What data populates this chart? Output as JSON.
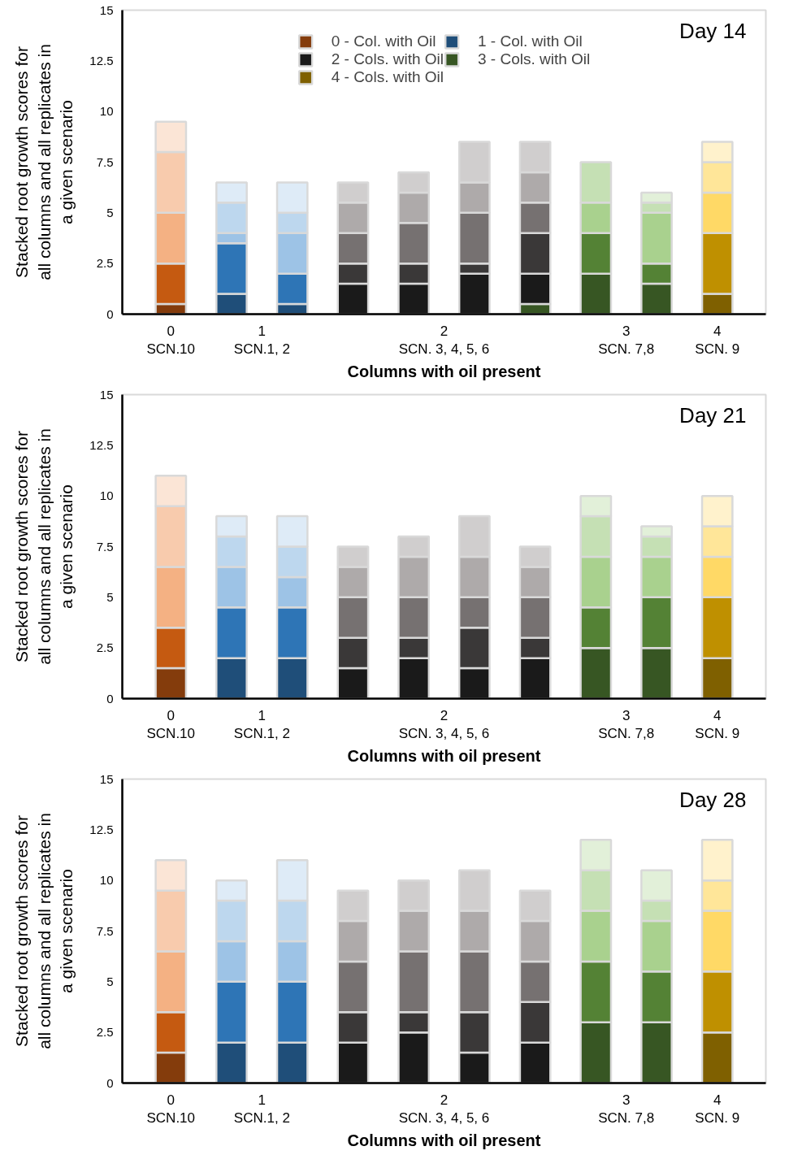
{
  "chart_data": [
    {
      "type": "bar",
      "title": "Day 14",
      "xlabel": "Columns with oil present",
      "ylabel": "Stacked root growth scores for all columns and all replicates in a given scenario",
      "stacked": true,
      "categories": [
        null,
        null,
        null,
        null,
        null,
        null,
        null,
        null,
        null,
        null
      ],
      "annotations": [
        "0\nSCN.10",
        "1\nSCN.1, 2",
        "2\nSCN. 3, 4, 5, 6",
        "3\nSCN. 7,8",
        "4\nSCN. 9"
      ],
      "ylim": [
        0,
        15
      ],
      "yticks": [
        0,
        2.5,
        5,
        7.5,
        10,
        12.5,
        15
      ],
      "grid": false,
      "legend": "top",
      "series": [
        {
          "colors": [
            null,
            null,
            null,
            null,
            null,
            null,
            "#375623",
            null,
            null,
            null
          ],
          "values": [
            null,
            null,
            null,
            null,
            null,
            null,
            0.5,
            null,
            null,
            null
          ]
        },
        {
          "name": "0 - Col. with Oil",
          "color": "#843c0c",
          "values": [
            0.5,
            null,
            null,
            null,
            null,
            null,
            null,
            null,
            null,
            null
          ]
        },
        {
          "name": "1 - Col. with Oil",
          "color": "#1f4e79",
          "values": [
            null,
            1,
            0.5,
            null,
            null,
            null,
            null,
            null,
            null,
            null
          ]
        },
        {
          "name": "2 - Cols. with Oil",
          "color": "#1a1a1a",
          "values": [
            null,
            null,
            null,
            1.5,
            1.5,
            2,
            1.5,
            null,
            null,
            null
          ]
        },
        {
          "name": "3 - Cols. with Oil",
          "color": "#375623",
          "values": [
            null,
            null,
            null,
            null,
            null,
            null,
            null,
            2,
            1.5,
            null
          ]
        },
        {
          "name": "4 - Cols. with Oil",
          "color": "#7f6000",
          "values": [
            null,
            null,
            null,
            null,
            null,
            null,
            null,
            null,
            null,
            1
          ]
        },
        {
          "colors": [
            "#c55a11",
            "#2e75b6",
            "#2e75b6",
            "#3a3838",
            "#3a3838",
            "#3a3838",
            "#3a3838",
            "#548235",
            "#548235",
            "#bf9000"
          ],
          "values": [
            2,
            2.5,
            1.5,
            1,
            1,
            0.5,
            2,
            2,
            1,
            3
          ]
        },
        {
          "colors": [
            "#f4b183",
            "#9dc3e6",
            "#9dc3e6",
            "#767171",
            "#767171",
            "#767171",
            "#767171",
            "#a9d18e",
            "#a9d18e",
            "#ffd966"
          ],
          "values": [
            2.5,
            0.5,
            2,
            1.5,
            2,
            2.5,
            1.5,
            1.5,
            2.5,
            2
          ]
        },
        {
          "colors": [
            "#f8cbad",
            "#bdd7ee",
            "#bdd7ee",
            "#aeaaaa",
            "#aeaaaa",
            "#aeaaaa",
            "#aeaaaa",
            "#c5e0b4",
            "#c5e0b4",
            "#ffe699"
          ],
          "values": [
            3,
            1.5,
            1,
            1.5,
            1.5,
            1.5,
            1.5,
            2,
            0.5,
            1.5
          ]
        },
        {
          "colors": [
            "#fbe5d6",
            "#deebf7",
            "#deebf7",
            "#d0cece",
            "#d0cece",
            "#d0cece",
            "#d0cece",
            "#e2f0d9",
            "#e2f0d9",
            "#fff2cc"
          ],
          "values": [
            1.5,
            1,
            1.5,
            1,
            1,
            2,
            1.5,
            null,
            0.5,
            1
          ]
        }
      ]
    },
    {
      "type": "bar",
      "title": "Day 21",
      "xlabel": "Columns with oil present",
      "ylabel": "Stacked root growth scores for all columns and all replicates in a given scenario",
      "stacked": true,
      "categories": [
        null,
        null,
        null,
        null,
        null,
        null,
        null,
        null,
        null,
        null
      ],
      "annotations": [
        "0\nSCN.10",
        "1\nSCN.1, 2",
        "2\nSCN. 3, 4, 5, 6",
        "3\nSCN. 7,8",
        "4\nSCN. 9"
      ],
      "ylim": [
        0,
        15
      ],
      "yticks": [
        0,
        2.5,
        5,
        7.5,
        10,
        12.5,
        15
      ],
      "grid": false,
      "series": [
        {
          "colors": [
            "#843c0c",
            "#1f4e79",
            "#1f4e79",
            "#1a1a1a",
            "#1a1a1a",
            "#1a1a1a",
            "#1a1a1a",
            "#375623",
            "#375623",
            "#7f6000"
          ],
          "values": [
            1.5,
            2,
            2,
            1.5,
            2,
            1.5,
            2,
            2.5,
            2.5,
            2
          ]
        },
        {
          "colors": [
            "#c55a11",
            "#2e75b6",
            "#2e75b6",
            "#3a3838",
            "#3a3838",
            "#3a3838",
            "#3a3838",
            "#548235",
            "#548235",
            "#bf9000"
          ],
          "values": [
            2,
            2.5,
            2.5,
            1.5,
            1,
            2,
            1,
            2,
            2.5,
            3
          ]
        },
        {
          "colors": [
            "#f4b183",
            "#9dc3e6",
            "#9dc3e6",
            "#767171",
            "#767171",
            "#767171",
            "#767171",
            "#a9d18e",
            "#a9d18e",
            "#ffd966"
          ],
          "values": [
            3,
            2,
            1.5,
            2,
            2,
            1.5,
            2,
            2.5,
            2,
            2
          ]
        },
        {
          "colors": [
            "#f8cbad",
            "#bdd7ee",
            "#bdd7ee",
            "#aeaaaa",
            "#aeaaaa",
            "#aeaaaa",
            "#aeaaaa",
            "#c5e0b4",
            "#c5e0b4",
            "#ffe699"
          ],
          "values": [
            3,
            1.5,
            1.5,
            1.5,
            2,
            2,
            1.5,
            2,
            1,
            1.5
          ]
        },
        {
          "colors": [
            "#fbe5d6",
            "#deebf7",
            "#deebf7",
            "#d0cece",
            "#d0cece",
            "#d0cece",
            "#d0cece",
            "#e2f0d9",
            "#e2f0d9",
            "#fff2cc"
          ],
          "values": [
            1.5,
            1,
            1.5,
            1,
            1,
            2,
            1,
            1,
            0.5,
            1.5
          ]
        }
      ]
    },
    {
      "type": "bar",
      "title": "Day 28",
      "xlabel": "Columns with oil present",
      "ylabel": "Stacked root growth scores for all columns and all replicates in a given scenario",
      "stacked": true,
      "categories": [
        null,
        null,
        null,
        null,
        null,
        null,
        null,
        null,
        null,
        null
      ],
      "annotations": [
        "0\nSCN.10",
        "1\nSCN.1, 2",
        "2\nSCN. 3, 4, 5, 6",
        "3\nSCN. 7,8",
        "4\nSCN. 9"
      ],
      "ylim": [
        0,
        15
      ],
      "yticks": [
        0,
        2.5,
        5,
        7.5,
        10,
        12.5,
        15
      ],
      "grid": false,
      "series": [
        {
          "colors": [
            "#843c0c",
            "#1f4e79",
            "#1f4e79",
            "#1a1a1a",
            "#1a1a1a",
            "#1a1a1a",
            "#1a1a1a",
            "#375623",
            "#375623",
            "#7f6000"
          ],
          "values": [
            1.5,
            2,
            2,
            2,
            2.5,
            1.5,
            2,
            3,
            3,
            2.5
          ]
        },
        {
          "colors": [
            "#c55a11",
            "#2e75b6",
            "#2e75b6",
            "#3a3838",
            "#3a3838",
            "#3a3838",
            "#3a3838",
            "#548235",
            "#548235",
            "#bf9000"
          ],
          "values": [
            2,
            3,
            3,
            1.5,
            1,
            2,
            2,
            3,
            2.5,
            3
          ]
        },
        {
          "colors": [
            "#f4b183",
            "#9dc3e6",
            "#9dc3e6",
            "#767171",
            "#767171",
            "#767171",
            "#767171",
            "#a9d18e",
            "#a9d18e",
            "#ffd966"
          ],
          "values": [
            3,
            2,
            2,
            2.5,
            3,
            3,
            2,
            2.5,
            2.5,
            3
          ]
        },
        {
          "colors": [
            "#f8cbad",
            "#bdd7ee",
            "#bdd7ee",
            "#aeaaaa",
            "#aeaaaa",
            "#aeaaaa",
            "#aeaaaa",
            "#c5e0b4",
            "#c5e0b4",
            "#ffe699"
          ],
          "values": [
            3,
            2,
            2,
            2,
            2,
            2,
            2,
            2,
            1,
            1.5
          ]
        },
        {
          "colors": [
            "#fbe5d6",
            "#deebf7",
            "#deebf7",
            "#d0cece",
            "#d0cece",
            "#d0cece",
            "#d0cece",
            "#e2f0d9",
            "#e2f0d9",
            "#fff2cc"
          ],
          "values": [
            1.5,
            1,
            2,
            1.5,
            1.5,
            2,
            1.5,
            1.5,
            1.5,
            2
          ]
        }
      ]
    }
  ]
}
